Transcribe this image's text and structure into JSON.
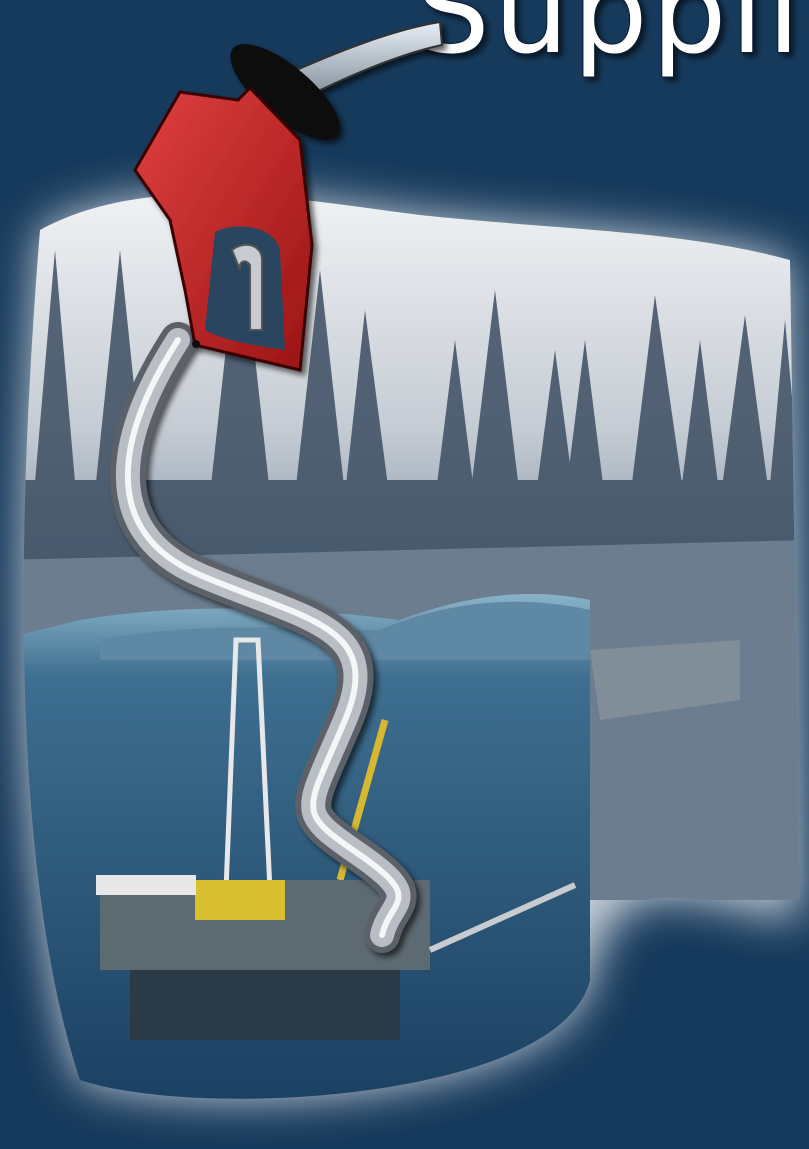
{
  "title": "Supplie"
}
